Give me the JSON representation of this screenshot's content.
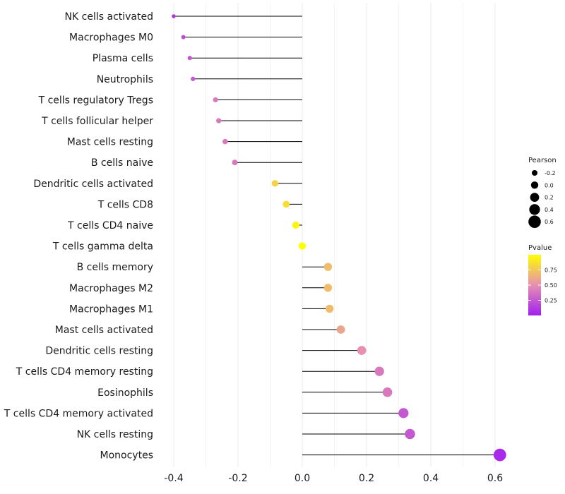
{
  "chart_data": {
    "type": "lollipop",
    "orientation": "horizontal",
    "categories": [
      "NK cells activated",
      "Macrophages M0",
      "Plasma cells",
      "Neutrophils",
      "T cells regulatory  Tregs",
      "T cells follicular helper",
      "Mast cells resting",
      "B cells naive",
      "Dendritic cells activated",
      "T cells CD8",
      "T cells CD4 naive",
      "T cells gamma delta",
      "B cells memory",
      "Macrophages M2",
      "Macrophages M1",
      "Mast cells activated",
      "Dendritic cells resting",
      "T cells CD4 memory resting",
      "Eosinophils",
      "T cells CD4 memory activated",
      "NK cells resting",
      "Monocytes"
    ],
    "values": [
      -0.4,
      -0.37,
      -0.35,
      -0.34,
      -0.27,
      -0.26,
      -0.24,
      -0.21,
      -0.085,
      -0.05,
      -0.02,
      0.0,
      0.08,
      0.08,
      0.085,
      0.12,
      0.185,
      0.24,
      0.265,
      0.315,
      0.335,
      0.615
    ],
    "pvalues": [
      0.1,
      0.2,
      0.25,
      0.25,
      0.4,
      0.4,
      0.4,
      0.4,
      0.8,
      0.85,
      0.95,
      1.0,
      0.7,
      0.7,
      0.7,
      0.6,
      0.5,
      0.4,
      0.4,
      0.25,
      0.25,
      0.05
    ],
    "x_ticks": [
      -0.4,
      -0.2,
      0.0,
      0.2,
      0.4,
      0.6
    ],
    "x_tick_labels": [
      "-0.4",
      "-0.2",
      "0.0",
      "0.2",
      "0.4",
      "0.6"
    ],
    "xlim": [
      -0.4,
      0.63
    ],
    "xlabel": "",
    "ylabel": "",
    "grid": "vertical",
    "size_legend": {
      "title": "Pearson",
      "values": [
        -0.2,
        0.0,
        0.2,
        0.4,
        0.6
      ],
      "labels": [
        "-0.2",
        "0.0",
        "0.2",
        "0.4",
        "0.6"
      ]
    },
    "color_legend": {
      "title": "Pvalue",
      "ticks": [
        0.75,
        0.5,
        0.25
      ],
      "labels": [
        "0.75",
        "0.50",
        "0.25"
      ],
      "low_color": "#a020f0",
      "mid_color": "#e68fb1",
      "high_color": "#ffff00"
    },
    "segment_color": "#000000",
    "grid_color": "#ebebeb"
  }
}
